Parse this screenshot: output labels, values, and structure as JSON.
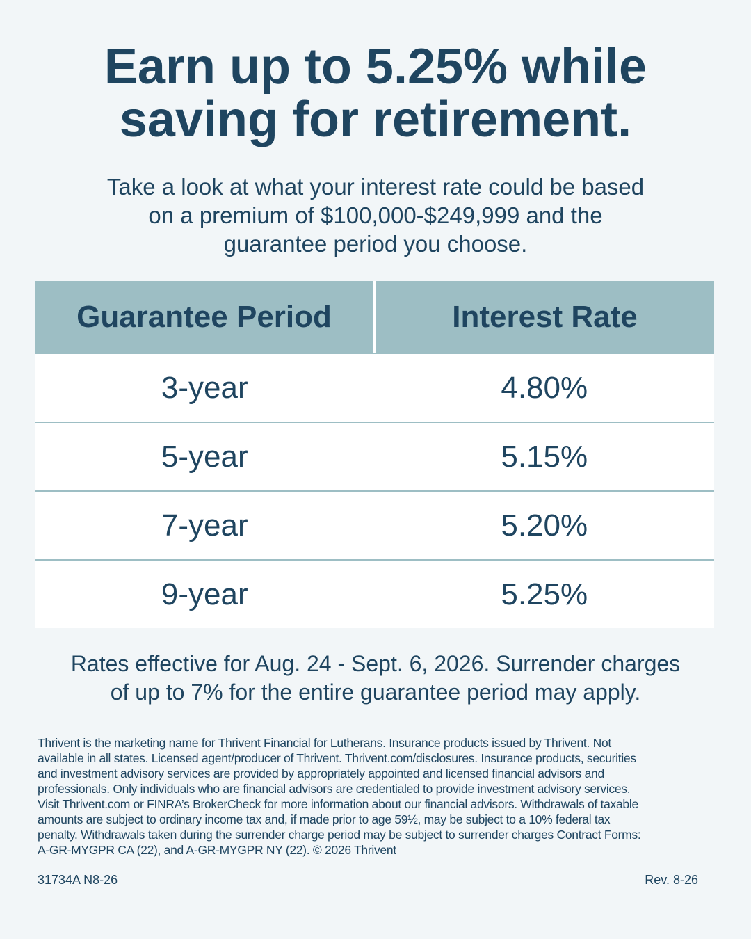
{
  "header": {
    "title_lines": [
      "Earn up to 5.25% while",
      "saving for retirement."
    ],
    "subtitle_lines": [
      "Take a look at what your interest rate could be based",
      "on a premium of $100,000-$249,999 and the",
      "guarantee period you choose."
    ]
  },
  "table": {
    "columns": [
      "Guarantee Period",
      "Interest Rate"
    ],
    "rows": [
      [
        "3-year",
        "4.80%"
      ],
      [
        "5-year",
        "5.15%"
      ],
      [
        "7-year",
        "5.20%"
      ],
      [
        "9-year",
        "5.25%"
      ]
    ]
  },
  "note_lines": [
    "Rates effective for Aug. 24 - Sept. 6, 2026. Surrender charges",
    "of up to 7% for the entire guarantee period may apply."
  ],
  "disclosure_lines": [
    "Thrivent is the marketing name for Thrivent Financial for Lutherans. Insurance products issued by Thrivent. Not",
    "available in all states. Licensed agent/producer of Thrivent. Thrivent.com/disclosures. Insurance products, securities",
    "and investment advisory services are provided by appropriately appointed and licensed financial advisors and",
    "professionals. Only individuals who are financial advisors are credentialed to provide investment advisory services.",
    "Visit Thrivent.com or FINRA’s BrokerCheck for more information about our financial advisors. Withdrawals of taxable",
    "amounts are subject to ordinary income tax and, if made prior to age 59½, may be subject to a 10% federal tax",
    "penalty. Withdrawals taken during the surrender charge period may be subject to surrender charges Contract Forms:",
    "A-GR-MYGPR CA (22), and A-GR-MYGPR NY (22). © 2026 Thrivent"
  ],
  "footer": {
    "code": "31734A N8-26",
    "revision": "Rev. 8-26"
  }
}
